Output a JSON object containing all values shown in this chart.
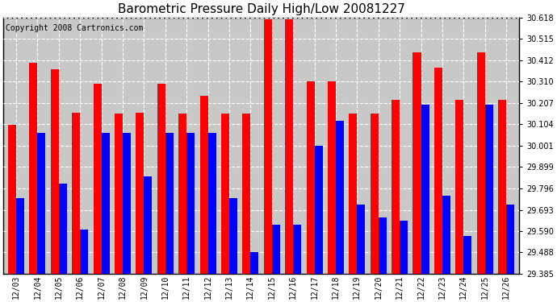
{
  "title": "Barometric Pressure Daily High/Low 20081227",
  "copyright": "Copyright 2008 Cartronics.com",
  "dates": [
    "12/03",
    "12/04",
    "12/05",
    "12/06",
    "12/07",
    "12/08",
    "12/09",
    "12/10",
    "12/11",
    "12/12",
    "12/13",
    "12/14",
    "12/15",
    "12/16",
    "12/17",
    "12/18",
    "12/19",
    "12/20",
    "12/21",
    "12/22",
    "12/23",
    "12/24",
    "12/25",
    "12/26"
  ],
  "highs": [
    30.1,
    30.4,
    30.37,
    30.16,
    30.3,
    30.155,
    30.16,
    30.3,
    30.155,
    30.24,
    30.155,
    30.155,
    30.61,
    30.61,
    30.31,
    30.31,
    30.155,
    30.155,
    30.22,
    30.45,
    30.375,
    30.22,
    30.45,
    30.22
  ],
  "lows": [
    29.748,
    30.065,
    29.82,
    29.6,
    30.065,
    30.065,
    29.855,
    30.065,
    30.065,
    30.065,
    29.748,
    29.488,
    29.62,
    29.62,
    30.001,
    30.12,
    29.72,
    29.655,
    29.64,
    30.2,
    29.76,
    29.568,
    30.2,
    29.72
  ],
  "high_color": "#ff0000",
  "low_color": "#0000ff",
  "bg_color": "#c8c8c8",
  "plot_bg_color": "#c8c8c8",
  "grid_color": "#ffffff",
  "ymin": 29.385,
  "ymax": 30.618,
  "yticks": [
    29.385,
    29.488,
    29.59,
    29.693,
    29.796,
    29.899,
    30.001,
    30.104,
    30.207,
    30.31,
    30.412,
    30.515,
    30.618
  ],
  "title_fontsize": 11,
  "copyright_fontsize": 7,
  "bar_width": 0.38
}
